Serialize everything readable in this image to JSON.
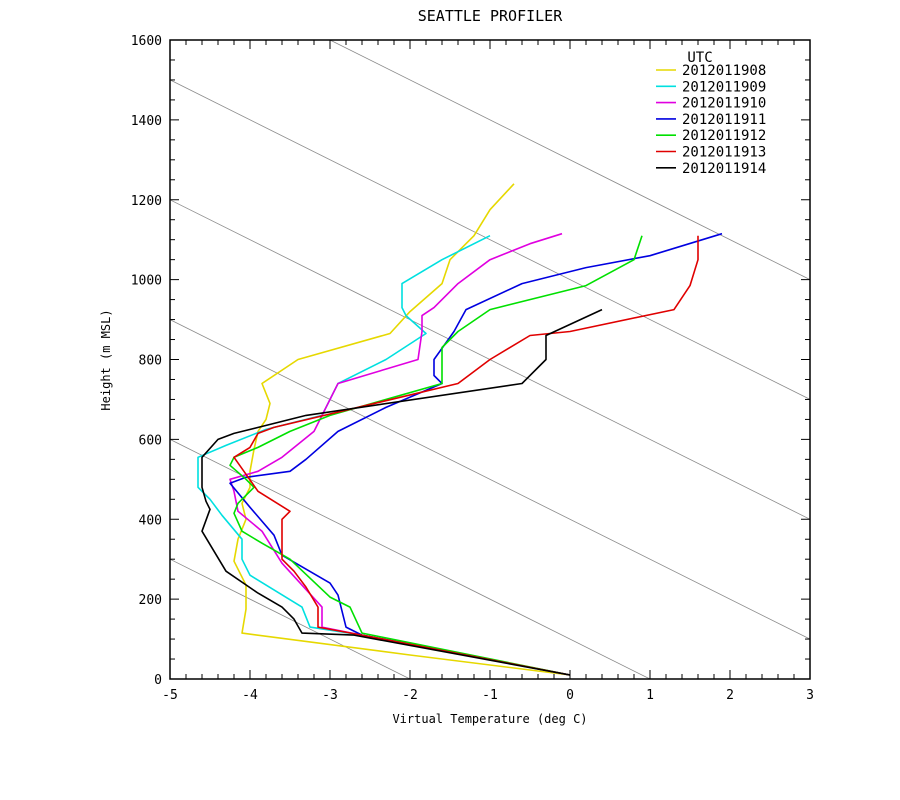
{
  "chart_data": {
    "type": "line",
    "title": "SEATTLE PROFILER",
    "xlabel": "Virtual Temperature (deg C)",
    "ylabel": "Height (m MSL)",
    "xlim": [
      -5,
      3
    ],
    "ylim": [
      0,
      1600
    ],
    "xticks": [
      "-5",
      "-4",
      "-3",
      "-2",
      "-1",
      "0",
      "1",
      "2",
      "3"
    ],
    "yticks": [
      "0",
      "200",
      "400",
      "600",
      "800",
      "1000",
      "1200",
      "1400",
      "1600"
    ],
    "grid": false,
    "legend_title": "UTC",
    "legend_position": "top-right",
    "series": [
      {
        "name": "2012011908",
        "color": "#e6d800",
        "points": [
          [
            0.0,
            10
          ],
          [
            -2.0,
            60
          ],
          [
            -4.1,
            115
          ],
          [
            -4.05,
            175
          ],
          [
            -4.05,
            235
          ],
          [
            -4.2,
            295
          ],
          [
            -4.15,
            350
          ],
          [
            -4.05,
            400
          ],
          [
            -4.1,
            440
          ],
          [
            -4.0,
            480
          ],
          [
            -4.0,
            520
          ],
          [
            -3.95,
            575
          ],
          [
            -3.9,
            620
          ],
          [
            -3.8,
            650
          ],
          [
            -3.75,
            690
          ],
          [
            -3.85,
            740
          ],
          [
            -3.4,
            800
          ],
          [
            -2.25,
            865
          ],
          [
            -2.0,
            920
          ],
          [
            -1.6,
            990
          ],
          [
            -1.5,
            1050
          ],
          [
            -1.2,
            1110
          ],
          [
            -1.0,
            1175
          ],
          [
            -0.7,
            1240
          ]
        ]
      },
      {
        "name": "2012011909",
        "color": "#00e0e0",
        "points": [
          [
            0.0,
            10
          ],
          [
            -2.6,
            110
          ],
          [
            -3.25,
            130
          ],
          [
            -3.35,
            180
          ],
          [
            -4.0,
            260
          ],
          [
            -4.1,
            300
          ],
          [
            -4.1,
            350
          ],
          [
            -4.35,
            410
          ],
          [
            -4.5,
            450
          ],
          [
            -4.65,
            480
          ],
          [
            -4.65,
            520
          ],
          [
            -4.65,
            555
          ],
          [
            -4.3,
            585
          ],
          [
            -3.8,
            625
          ],
          [
            -3.1,
            660
          ],
          [
            -2.9,
            740
          ],
          [
            -2.3,
            800
          ],
          [
            -1.8,
            865
          ],
          [
            -2.05,
            910
          ],
          [
            -2.1,
            930
          ],
          [
            -2.1,
            990
          ],
          [
            -1.6,
            1050
          ],
          [
            -1.0,
            1110
          ]
        ]
      },
      {
        "name": "2012011910",
        "color": "#e000e0",
        "points": [
          [
            0.0,
            10
          ],
          [
            -2.6,
            110
          ],
          [
            -3.1,
            130
          ],
          [
            -3.1,
            180
          ],
          [
            -3.6,
            290
          ],
          [
            -3.85,
            370
          ],
          [
            -4.15,
            420
          ],
          [
            -4.2,
            470
          ],
          [
            -4.25,
            500
          ],
          [
            -3.9,
            520
          ],
          [
            -3.6,
            555
          ],
          [
            -3.2,
            620
          ],
          [
            -2.9,
            740
          ],
          [
            -1.9,
            800
          ],
          [
            -1.85,
            870
          ],
          [
            -1.85,
            910
          ],
          [
            -1.7,
            930
          ],
          [
            -1.4,
            990
          ],
          [
            -1.0,
            1050
          ],
          [
            -0.5,
            1090
          ],
          [
            -0.1,
            1115
          ]
        ]
      },
      {
        "name": "2012011911",
        "color": "#0000e0",
        "points": [
          [
            0.0,
            10
          ],
          [
            -2.6,
            110
          ],
          [
            -2.8,
            130
          ],
          [
            -2.9,
            210
          ],
          [
            -3.0,
            240
          ],
          [
            -3.6,
            310
          ],
          [
            -3.7,
            360
          ],
          [
            -4.0,
            430
          ],
          [
            -4.25,
            490
          ],
          [
            -4.05,
            505
          ],
          [
            -3.5,
            520
          ],
          [
            -3.3,
            550
          ],
          [
            -2.9,
            620
          ],
          [
            -2.3,
            680
          ],
          [
            -1.6,
            740
          ],
          [
            -1.7,
            760
          ],
          [
            -1.7,
            800
          ],
          [
            -1.45,
            870
          ],
          [
            -1.3,
            925
          ],
          [
            -0.6,
            990
          ],
          [
            0.2,
            1030
          ],
          [
            1.0,
            1060
          ],
          [
            1.9,
            1115
          ]
        ]
      },
      {
        "name": "2012011912",
        "color": "#00e000",
        "points": [
          [
            0.0,
            10
          ],
          [
            -2.6,
            115
          ],
          [
            -2.75,
            180
          ],
          [
            -3.0,
            205
          ],
          [
            -3.5,
            300
          ],
          [
            -3.85,
            340
          ],
          [
            -4.1,
            370
          ],
          [
            -4.2,
            415
          ],
          [
            -4.15,
            440
          ],
          [
            -3.95,
            480
          ],
          [
            -4.05,
            500
          ],
          [
            -4.25,
            535
          ],
          [
            -4.2,
            555
          ],
          [
            -3.9,
            580
          ],
          [
            -3.5,
            620
          ],
          [
            -3.0,
            660
          ],
          [
            -1.6,
            740
          ],
          [
            -1.6,
            800
          ],
          [
            -1.6,
            830
          ],
          [
            -1.4,
            870
          ],
          [
            -1.0,
            925
          ],
          [
            0.2,
            985
          ],
          [
            0.8,
            1050
          ],
          [
            0.9,
            1110
          ]
        ]
      },
      {
        "name": "2012011913",
        "color": "#e00000",
        "points": [
          [
            0.0,
            10
          ],
          [
            -2.6,
            110
          ],
          [
            -3.15,
            130
          ],
          [
            -3.15,
            180
          ],
          [
            -3.3,
            230
          ],
          [
            -3.45,
            270
          ],
          [
            -3.6,
            300
          ],
          [
            -3.6,
            350
          ],
          [
            -3.6,
            400
          ],
          [
            -3.5,
            420
          ],
          [
            -3.9,
            470
          ],
          [
            -4.2,
            555
          ],
          [
            -4.0,
            580
          ],
          [
            -3.9,
            615
          ],
          [
            -3.7,
            630
          ],
          [
            -1.4,
            740
          ],
          [
            -1.0,
            800
          ],
          [
            -0.5,
            860
          ],
          [
            0.0,
            870
          ],
          [
            1.3,
            925
          ],
          [
            1.5,
            985
          ],
          [
            1.6,
            1050
          ],
          [
            1.6,
            1110
          ]
        ]
      },
      {
        "name": "2012011914",
        "color": "#000000",
        "points": [
          [
            0.0,
            10
          ],
          [
            -2.7,
            110
          ],
          [
            -3.35,
            115
          ],
          [
            -3.45,
            150
          ],
          [
            -3.6,
            180
          ],
          [
            -3.9,
            215
          ],
          [
            -4.3,
            270
          ],
          [
            -4.6,
            370
          ],
          [
            -4.5,
            425
          ],
          [
            -4.55,
            445
          ],
          [
            -4.6,
            480
          ],
          [
            -4.6,
            520
          ],
          [
            -4.6,
            555
          ],
          [
            -4.4,
            600
          ],
          [
            -4.2,
            615
          ],
          [
            -3.3,
            660
          ],
          [
            -0.6,
            740
          ],
          [
            -0.3,
            800
          ],
          [
            -0.3,
            860
          ],
          [
            0.4,
            925
          ]
        ]
      }
    ]
  }
}
